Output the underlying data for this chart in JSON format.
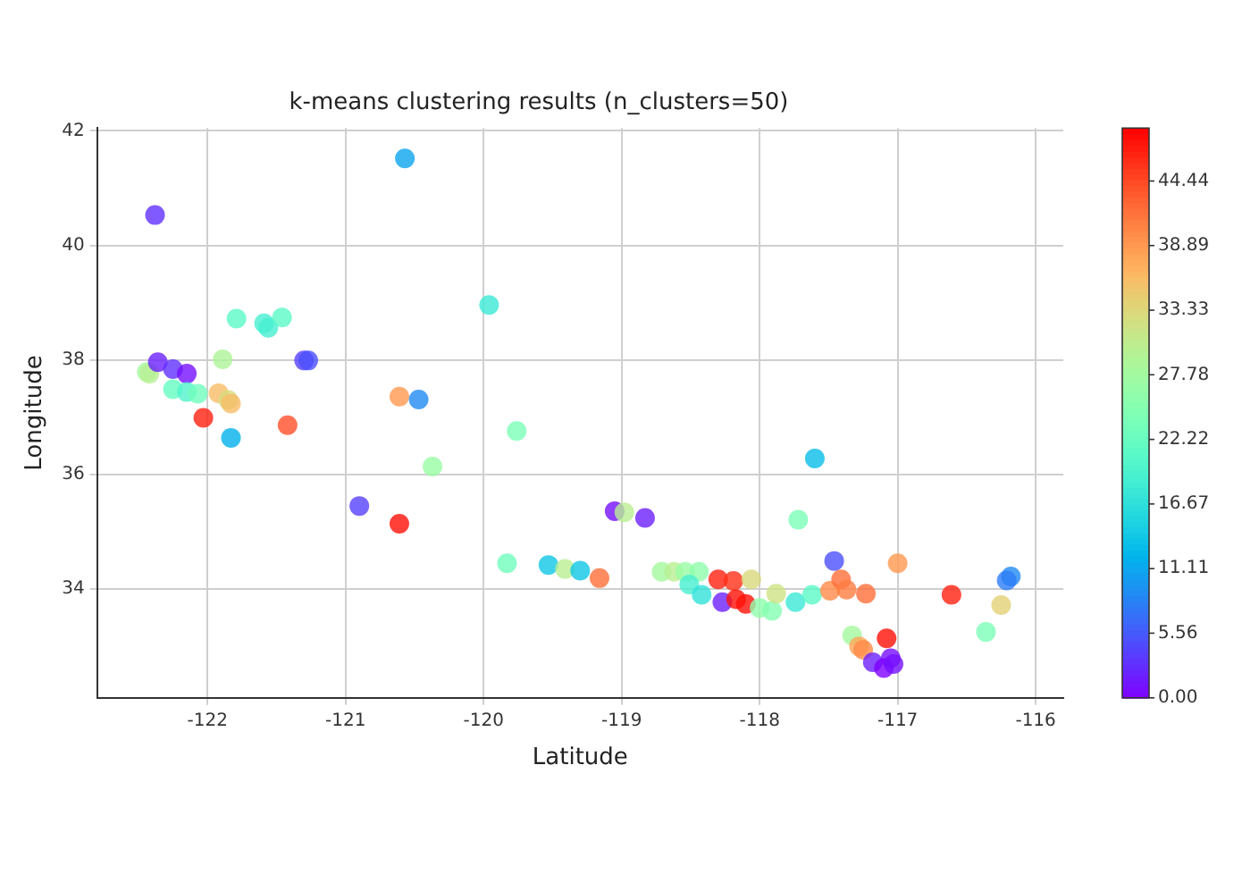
{
  "chart_data": {
    "type": "scatter",
    "title": "k-means clustering results (n_clusters=50)",
    "xlabel": "Latitude",
    "ylabel": "Longitude",
    "xlim": [
      -122.8,
      -115.8
    ],
    "ylim": [
      32.1,
      42.05
    ],
    "xticks": [
      -122,
      -121,
      -120,
      -119,
      -118,
      -117,
      -116
    ],
    "yticks": [
      34,
      36,
      38,
      40,
      42
    ],
    "grid": true,
    "marker": "circle",
    "clim": [
      0,
      49
    ],
    "cticks": [
      {
        "value": 0,
        "label": "0.00"
      },
      {
        "value": 5.56,
        "label": "5.56"
      },
      {
        "value": 11.11,
        "label": "11.11"
      },
      {
        "value": 16.67,
        "label": "16.67"
      },
      {
        "value": 22.22,
        "label": "22.22"
      },
      {
        "value": 27.78,
        "label": "27.78"
      },
      {
        "value": 33.33,
        "label": "33.33"
      },
      {
        "value": 38.89,
        "label": "38.89"
      },
      {
        "value": 44.44,
        "label": "44.44"
      }
    ],
    "x": [
      -122.38,
      -120.57,
      -119.96,
      -121.79,
      -121.59,
      -121.56,
      -121.46,
      -121.89,
      -121.3,
      -121.27,
      -122.44,
      -122.42,
      -122.36,
      -122.25,
      -122.15,
      -122.25,
      -122.15,
      -122.07,
      -121.92,
      -121.85,
      -121.83,
      -122.03,
      -121.83,
      -121.42,
      -120.61,
      -120.47,
      -119.76,
      -120.37,
      -120.9,
      -120.61,
      -119.05,
      -118.98,
      -118.83,
      -117.6,
      -117.72,
      -119.83,
      -119.53,
      -119.41,
      -119.3,
      -119.16,
      -118.71,
      -118.62,
      -118.54,
      -118.44,
      -118.51,
      -118.42,
      -117.46,
      -117.0,
      -116.18,
      -116.21,
      -118.3,
      -118.19,
      -118.06,
      -118.27,
      -118.17,
      -118.1,
      -118.0,
      -117.91,
      -117.88,
      -117.74,
      -117.62,
      -117.49,
      -117.41,
      -117.37,
      -117.23,
      -116.61,
      -116.25,
      -116.36,
      -117.33,
      -117.08,
      -117.28,
      -117.25,
      -117.18,
      -117.05,
      -117.1,
      -117.03
    ],
    "values": [
      40.53,
      41.52,
      38.96,
      38.72,
      38.64,
      38.56,
      38.74,
      38.01,
      37.99,
      37.99,
      37.79,
      37.76,
      37.96,
      37.84,
      37.76,
      37.49,
      37.44,
      37.41,
      37.42,
      37.3,
      37.24,
      36.99,
      36.64,
      36.86,
      37.36,
      37.31,
      36.76,
      36.14,
      35.45,
      35.14,
      35.36,
      35.34,
      35.24,
      36.28,
      35.21,
      34.45,
      34.42,
      34.35,
      34.32,
      34.19,
      34.3,
      34.3,
      34.3,
      34.3,
      34.08,
      33.9,
      34.49,
      34.45,
      34.22,
      34.15,
      34.17,
      34.14,
      34.17,
      33.77,
      33.82,
      33.74,
      33.67,
      33.62,
      33.92,
      33.77,
      33.9,
      33.97,
      34.17,
      33.99,
      33.92,
      33.9,
      33.72,
      33.25,
      33.19,
      33.14,
      33.0,
      32.94,
      32.72,
      32.79,
      32.62,
      32.69
    ],
    "cvalues": [
      3,
      11,
      18,
      21,
      19,
      19,
      21,
      29,
      4,
      5,
      28,
      30,
      2,
      3,
      1,
      22,
      20,
      23,
      36,
      33,
      36,
      47,
      12,
      44,
      39,
      9,
      24,
      27,
      4,
      48,
      1,
      30,
      2,
      13,
      24,
      23,
      14,
      30,
      14,
      42,
      28,
      30,
      27,
      26,
      19,
      17,
      5,
      39,
      9,
      8,
      47,
      46,
      33,
      2,
      48,
      48,
      26,
      25,
      32,
      18,
      21,
      40,
      42,
      41,
      42,
      47,
      34,
      24,
      28,
      48,
      38,
      40,
      2,
      1,
      0,
      1
    ]
  }
}
